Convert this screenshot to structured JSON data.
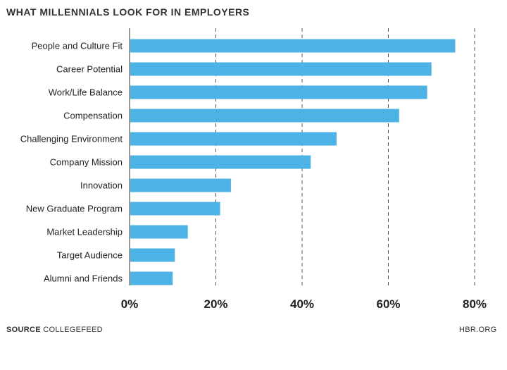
{
  "chart_data": {
    "type": "bar",
    "orientation": "horizontal",
    "title": "WHAT MILLENNIALS LOOK FOR IN EMPLOYERS",
    "categories": [
      "People and Culture Fit",
      "Career Potential",
      "Work/Life Balance",
      "Compensation",
      "Challenging Environment",
      "Company Mission",
      "Innovation",
      "New Graduate Program",
      "Market Leadership",
      "Target Audience",
      "Alumni and Friends"
    ],
    "values": [
      75.5,
      70,
      69,
      62.5,
      48,
      42,
      23.5,
      21,
      13.5,
      10.5,
      10
    ],
    "xlim": [
      0,
      80
    ],
    "xticks": [
      "0%",
      "20%",
      "40%",
      "60%",
      "80%"
    ],
    "grid": "vertical-dashed",
    "bar_color": "#4db3e6",
    "grid_color": "#555555"
  },
  "footer": {
    "source_label": "SOURCE",
    "source_value": "COLLEGEFEED",
    "publisher": "HBR.ORG"
  }
}
